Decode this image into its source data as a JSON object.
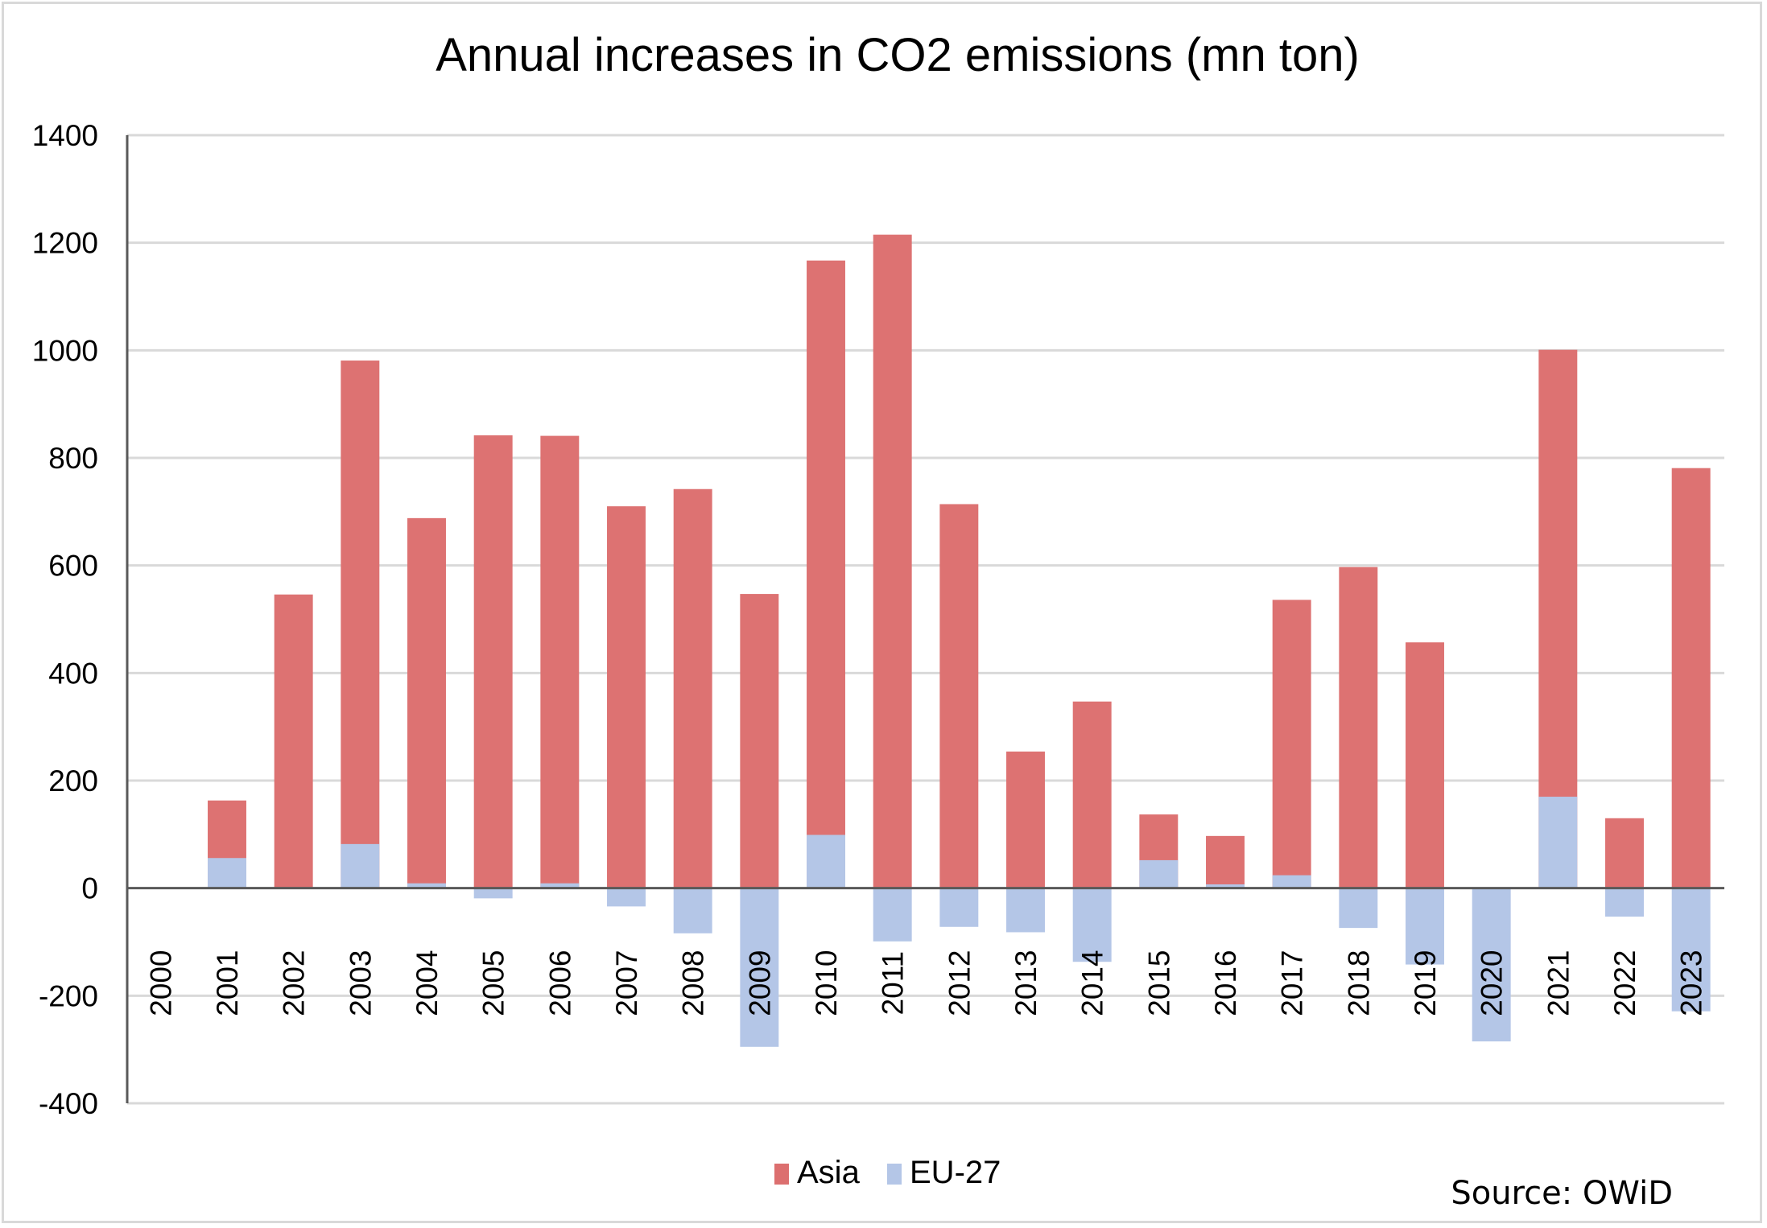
{
  "chart_data": {
    "type": "bar",
    "subtype": "overlapping-clustered",
    "title": "Annual increases in CO2 emissions (mn ton)",
    "xlabel": "",
    "ylabel": "",
    "ylim": [
      -400,
      1400
    ],
    "yticks": [
      1400,
      1200,
      1000,
      800,
      600,
      400,
      200,
      0,
      -200,
      -400
    ],
    "ytick_labels": [
      "1400",
      "1200",
      "1000",
      "800",
      "600",
      "400",
      "200",
      "0",
      "-200",
      "-400"
    ],
    "grid": true,
    "categories": [
      "2000",
      "2001",
      "2002",
      "2003",
      "2004",
      "2005",
      "2006",
      "2007",
      "2008",
      "2009",
      "2010",
      "2011",
      "2012",
      "2013",
      "2014",
      "2015",
      "2016",
      "2017",
      "2018",
      "2019",
      "2020",
      "2021",
      "2022",
      "2023"
    ],
    "series": [
      {
        "name": "Asia",
        "color": "#dc6f6f",
        "values": [
          0,
          163,
          546,
          981,
          688,
          842,
          841,
          710,
          742,
          547,
          1167,
          1215,
          714,
          254,
          347,
          137,
          97,
          536,
          597,
          457,
          0,
          1001,
          130,
          781
        ]
      },
      {
        "name": "EU-27",
        "color": "#b4c6e7",
        "values": [
          0,
          56,
          0,
          82,
          9,
          -19,
          9,
          -34,
          -84,
          -295,
          99,
          -99,
          -72,
          -82,
          -137,
          52,
          7,
          24,
          -74,
          -142,
          -285,
          170,
          -53,
          -229
        ]
      }
    ],
    "legend": {
      "position": "bottom",
      "entries": [
        "Asia",
        "EU-27"
      ]
    },
    "annotations": [
      {
        "text": "Source: OWiD",
        "position": "bottom-right"
      }
    ]
  }
}
